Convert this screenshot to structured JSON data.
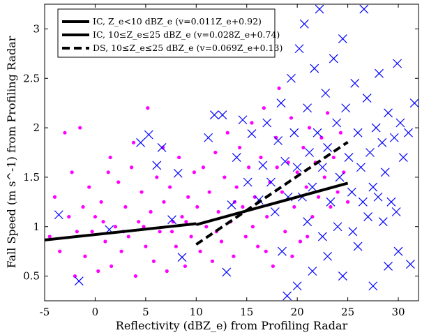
{
  "chart_data": {
    "type": "scatter",
    "xlabel": "Reflectivity (dBZ_e) from Profiling Radar",
    "ylabel": "Fall Speed (m s^-1) from Profiling Radar",
    "xlim": [
      -5,
      32
    ],
    "ylim": [
      0.25,
      3.25
    ],
    "xticks": [
      -5,
      0,
      5,
      10,
      15,
      20,
      25,
      30
    ],
    "yticks": [
      0.5,
      1,
      1.5,
      2,
      2.5,
      3
    ],
    "grid": false,
    "legend_position": "top-left",
    "colors": {
      "ic_points": "#ff00ff",
      "ds_points": "#0000ff",
      "fit_lines": "#000000"
    },
    "legend": [
      {
        "label": "IC, Z_e<10 dBZ_e (v=0.011Z_e+0.92)",
        "style": "solid"
      },
      {
        "label": "IC, 10≤Z_e≤25 dBZ_e (v=0.028Z_e+0.74)",
        "style": "solid"
      },
      {
        "label": "DS, 10≤Z_e≤25 dBZ_e (v=0.069Z_e+0.13)",
        "style": "dashed"
      }
    ],
    "fit_lines": [
      {
        "label": "IC, Z_e<10 dBZ_e",
        "x_range": [
          -5,
          10
        ],
        "slope": 0.011,
        "intercept": 0.92,
        "style": "solid"
      },
      {
        "label": "IC, 10≤Z_e≤25 dBZ_e",
        "x_range": [
          10,
          25
        ],
        "slope": 0.028,
        "intercept": 0.74,
        "style": "solid"
      },
      {
        "label": "DS, 10≤Z_e≤25 dBZ_e",
        "x_range": [
          10,
          25
        ],
        "slope": 0.069,
        "intercept": 0.13,
        "style": "dashed"
      }
    ],
    "series": [
      {
        "marker": "dot",
        "color": "#ff00ff",
        "points": [
          [
            -4.5,
            0.9
          ],
          [
            -4.0,
            1.3
          ],
          [
            -3.5,
            0.75
          ],
          [
            -3.0,
            1.95
          ],
          [
            -2.6,
            1.1
          ],
          [
            -2.3,
            1.55
          ],
          [
            -2.0,
            0.5
          ],
          [
            -1.5,
            2.0
          ],
          [
            -1.2,
            1.2
          ],
          [
            -1.0,
            0.7
          ],
          [
            -0.6,
            1.4
          ],
          [
            -0.3,
            0.95
          ],
          [
            0.0,
            1.1
          ],
          [
            0.3,
            0.55
          ],
          [
            0.6,
            1.25
          ],
          [
            1.0,
            0.85
          ],
          [
            1.3,
            1.55
          ],
          [
            1.6,
            0.6
          ],
          [
            2.0,
            1.0
          ],
          [
            2.3,
            1.45
          ],
          [
            2.6,
            0.75
          ],
          [
            3.0,
            1.2
          ],
          [
            3.3,
            0.9
          ],
          [
            3.6,
            1.6
          ],
          [
            4.0,
            0.5
          ],
          [
            4.3,
            1.05
          ],
          [
            4.6,
            1.35
          ],
          [
            5.0,
            0.8
          ],
          [
            5.2,
            2.2
          ],
          [
            5.5,
            1.15
          ],
          [
            5.8,
            0.65
          ],
          [
            6.1,
            1.5
          ],
          [
            6.4,
            0.95
          ],
          [
            6.8,
            1.25
          ],
          [
            7.1,
            0.55
          ],
          [
            7.4,
            1.4
          ],
          [
            7.7,
            1.05
          ],
          [
            8.0,
            0.8
          ],
          [
            8.3,
            1.7
          ],
          [
            8.6,
            1.1
          ],
          [
            8.9,
            0.6
          ],
          [
            9.2,
            1.3
          ],
          [
            9.5,
            0.9
          ],
          [
            9.8,
            1.55
          ],
          [
            10.1,
            1.2
          ],
          [
            10.4,
            0.75
          ],
          [
            10.7,
            1.6
          ],
          [
            11.0,
            1.0
          ],
          [
            11.3,
            1.35
          ],
          [
            11.6,
            0.65
          ],
          [
            11.9,
            1.75
          ],
          [
            12.2,
            1.15
          ],
          [
            12.5,
            0.85
          ],
          [
            12.8,
            1.5
          ],
          [
            13.1,
            1.95
          ],
          [
            13.4,
            1.05
          ],
          [
            13.7,
            0.7
          ],
          [
            14.0,
            1.4
          ],
          [
            14.3,
            1.8
          ],
          [
            14.6,
            1.2
          ],
          [
            14.9,
            0.9
          ],
          [
            15.2,
            1.6
          ],
          [
            15.5,
            2.05
          ],
          [
            15.8,
            1.3
          ],
          [
            16.1,
            0.8
          ],
          [
            16.4,
            1.7
          ],
          [
            16.7,
            2.2
          ],
          [
            17.0,
            1.1
          ],
          [
            17.3,
            1.45
          ],
          [
            17.6,
            0.6
          ],
          [
            17.9,
            1.9
          ],
          [
            18.2,
            2.4
          ],
          [
            18.5,
            1.35
          ],
          [
            18.8,
            0.95
          ],
          [
            19.1,
            1.65
          ],
          [
            19.4,
            2.1
          ],
          [
            19.7,
            1.2
          ],
          [
            20.0,
            1.55
          ],
          [
            20.3,
            0.85
          ],
          [
            20.6,
            1.8
          ],
          [
            20.9,
            1.4
          ],
          [
            21.2,
            2.0
          ],
          [
            21.5,
            1.1
          ],
          [
            21.8,
            1.65
          ],
          [
            22.1,
            1.3
          ],
          [
            22.4,
            1.9
          ],
          [
            22.7,
            1.5
          ],
          [
            23.0,
            2.15
          ],
          [
            23.3,
            1.2
          ],
          [
            23.6,
            1.7
          ],
          [
            24.0,
            1.35
          ],
          [
            24.3,
            1.95
          ],
          [
            24.6,
            1.55
          ],
          [
            25.0,
            1.25
          ],
          [
            1.5,
            1.7
          ],
          [
            3.8,
            1.85
          ],
          [
            6.7,
            1.8
          ],
          [
            -1.8,
            0.95
          ],
          [
            0.8,
            1.05
          ],
          [
            2.8,
            0.95
          ],
          [
            4.8,
            1.0
          ],
          [
            7.6,
            0.95
          ],
          [
            9.0,
            1.05
          ],
          [
            12.0,
            0.95
          ],
          [
            13.8,
            1.25
          ],
          [
            15.6,
            1.0
          ],
          [
            16.9,
            0.75
          ],
          [
            18.0,
            1.6
          ],
          [
            19.5,
            0.7
          ],
          [
            21.0,
            0.9
          ]
        ]
      },
      {
        "marker": "x",
        "color": "#0000ff",
        "points": [
          [
            -3.6,
            1.12
          ],
          [
            -1.6,
            0.45
          ],
          [
            1.4,
            0.97
          ],
          [
            4.5,
            1.85
          ],
          [
            5.3,
            1.93
          ],
          [
            6.1,
            1.62
          ],
          [
            6.6,
            1.8
          ],
          [
            7.6,
            1.07
          ],
          [
            8.2,
            1.54
          ],
          [
            8.6,
            0.69
          ],
          [
            11.2,
            1.9
          ],
          [
            11.8,
            2.13
          ],
          [
            12.6,
            2.13
          ],
          [
            13.0,
            0.54
          ],
          [
            13.5,
            1.22
          ],
          [
            14.0,
            1.7
          ],
          [
            14.6,
            2.08
          ],
          [
            15.1,
            1.45
          ],
          [
            15.5,
            1.94
          ],
          [
            16.2,
            1.27
          ],
          [
            16.6,
            1.62
          ],
          [
            17.0,
            2.05
          ],
          [
            17.4,
            1.45
          ],
          [
            17.8,
            1.15
          ],
          [
            18.1,
            1.87
          ],
          [
            18.4,
            2.25
          ],
          [
            18.8,
            1.66
          ],
          [
            19.1,
            1.3
          ],
          [
            19.4,
            2.5
          ],
          [
            19.7,
            1.95
          ],
          [
            20.0,
            1.6
          ],
          [
            20.2,
            2.8
          ],
          [
            20.5,
            1.3
          ],
          [
            20.7,
            3.05
          ],
          [
            21.0,
            2.2
          ],
          [
            21.2,
            1.75
          ],
          [
            21.5,
            1.4
          ],
          [
            21.7,
            2.6
          ],
          [
            22.0,
            1.95
          ],
          [
            22.2,
            3.2
          ],
          [
            22.5,
            1.6
          ],
          [
            22.8,
            2.35
          ],
          [
            23.0,
            1.8
          ],
          [
            23.3,
            1.25
          ],
          [
            23.6,
            2.7
          ],
          [
            23.9,
            2.05
          ],
          [
            24.2,
            1.5
          ],
          [
            24.5,
            2.9
          ],
          [
            24.8,
            2.2
          ],
          [
            25.1,
            1.7
          ],
          [
            25.4,
            1.35
          ],
          [
            25.7,
            2.45
          ],
          [
            26.0,
            1.95
          ],
          [
            26.3,
            1.6
          ],
          [
            26.6,
            3.2
          ],
          [
            26.9,
            2.3
          ],
          [
            27.2,
            1.75
          ],
          [
            27.5,
            1.4
          ],
          [
            27.8,
            2.0
          ],
          [
            28.1,
            2.55
          ],
          [
            28.4,
            1.85
          ],
          [
            28.7,
            1.55
          ],
          [
            29.0,
            2.15
          ],
          [
            29.3,
            1.25
          ],
          [
            29.6,
            1.9
          ],
          [
            29.9,
            2.65
          ],
          [
            30.2,
            2.05
          ],
          [
            30.5,
            1.7
          ],
          [
            31.0,
            1.95
          ],
          [
            31.6,
            2.25
          ],
          [
            19.0,
            0.3
          ],
          [
            20.0,
            0.4
          ],
          [
            21.5,
            0.55
          ],
          [
            23.0,
            0.7
          ],
          [
            24.5,
            0.5
          ],
          [
            26.0,
            0.8
          ],
          [
            27.5,
            0.4
          ],
          [
            29.0,
            0.6
          ],
          [
            30.0,
            0.75
          ],
          [
            31.2,
            0.62
          ],
          [
            22.5,
            0.9
          ],
          [
            24.0,
            1.0
          ],
          [
            25.5,
            0.95
          ],
          [
            27.0,
            1.1
          ],
          [
            28.5,
            1.05
          ],
          [
            29.8,
            1.15
          ],
          [
            18.5,
            0.75
          ],
          [
            21.0,
            1.05
          ],
          [
            26.5,
            1.25
          ],
          [
            28.0,
            1.3
          ]
        ]
      }
    ]
  }
}
